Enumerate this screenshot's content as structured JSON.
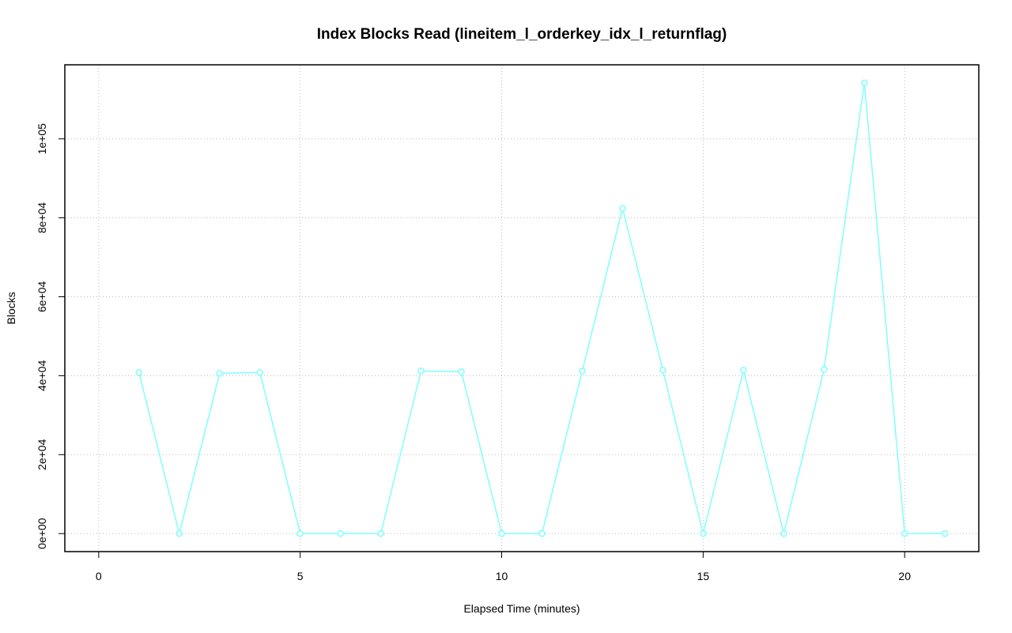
{
  "chart_data": {
    "type": "line",
    "title": "Index Blocks Read (lineitem_l_orderkey_idx_l_returnflag)",
    "x_label": "Elapsed Time (minutes)",
    "y_label": "Blocks",
    "x": [
      1,
      2,
      3,
      4,
      5,
      6,
      7,
      8,
      9,
      10,
      11,
      12,
      13,
      14,
      15,
      16,
      17,
      18,
      19,
      20,
      21
    ],
    "series": [
      {
        "color": "#7fffff",
        "values": [
          40800,
          0,
          40600,
          40800,
          0,
          0,
          0,
          41200,
          41000,
          0,
          0,
          41200,
          82400,
          41400,
          0,
          41400,
          0,
          41600,
          114200,
          0,
          0
        ]
      }
    ],
    "xlim": [
      -0.84,
      21.84
    ],
    "xticks": [
      0,
      5,
      10,
      15,
      20
    ],
    "ylim": [
      -4568,
      118768
    ],
    "yticks": [
      {
        "value": 0,
        "label": "0e+00"
      },
      {
        "value": 20000,
        "label": "2e+04"
      },
      {
        "value": 40000,
        "label": "4e+04"
      },
      {
        "value": 60000,
        "label": "6e+04"
      },
      {
        "value": 80000,
        "label": "8e+04"
      },
      {
        "value": 100000,
        "label": "1e+05"
      }
    ],
    "grid": true
  }
}
